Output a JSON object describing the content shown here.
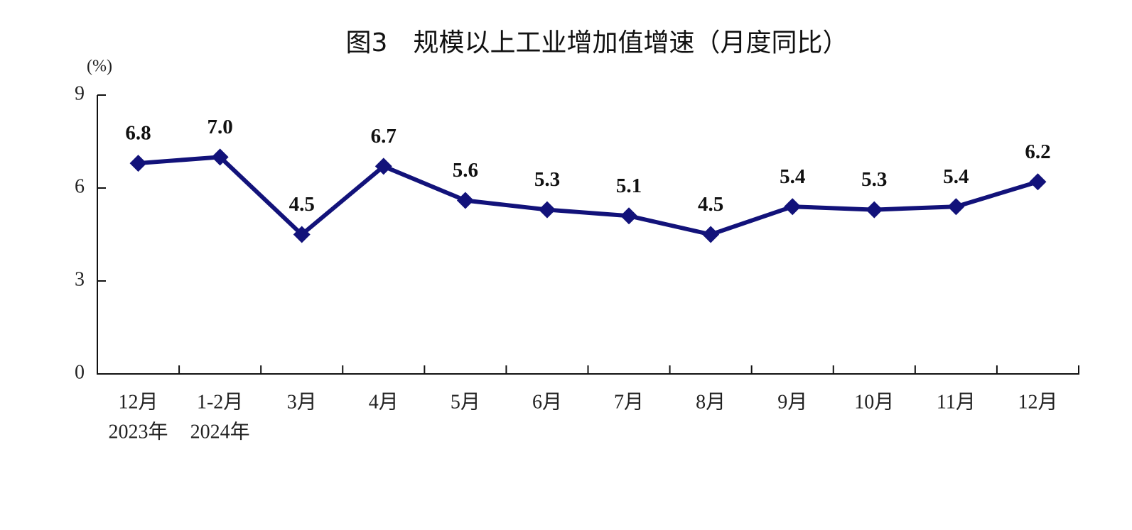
{
  "chart_data": {
    "type": "line",
    "title": "图3　规模以上工业增加值增速（月度同比）",
    "y_label": "(%)",
    "categories": [
      "12月",
      "1-2月",
      "3月",
      "4月",
      "5月",
      "6月",
      "7月",
      "8月",
      "9月",
      "10月",
      "11月",
      "12月"
    ],
    "x_year_labels": [
      "2023年",
      "2024年",
      null,
      null,
      null,
      null,
      null,
      null,
      null,
      null,
      null,
      null
    ],
    "series": [
      {
        "name": "规模以上工业增加值增速",
        "color": "#12127a",
        "values": [
          6.8,
          7.0,
          4.5,
          6.7,
          5.6,
          5.3,
          5.1,
          4.5,
          5.4,
          5.3,
          5.4,
          6.2
        ],
        "value_labels": [
          "6.8",
          "7.0",
          "4.5",
          "6.7",
          "5.6",
          "5.3",
          "5.1",
          "4.5",
          "5.4",
          "5.3",
          "5.4",
          "6.2"
        ]
      }
    ],
    "ylim": [
      0,
      9
    ],
    "yticks": [
      0,
      3,
      6,
      9
    ],
    "grid": false
  }
}
